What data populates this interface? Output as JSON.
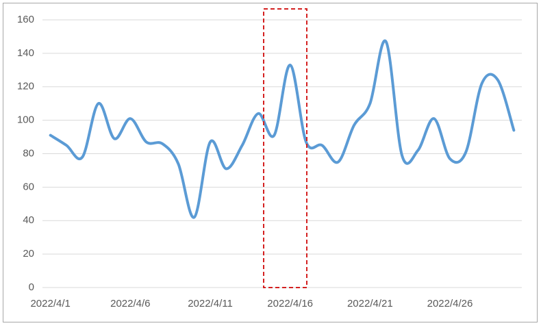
{
  "chart_data": {
    "type": "line",
    "categories": [
      "2022/4/1",
      null,
      null,
      null,
      null,
      "2022/4/6",
      null,
      null,
      null,
      null,
      "2022/4/11",
      null,
      null,
      null,
      null,
      "2022/4/16",
      null,
      null,
      null,
      null,
      "2022/4/21",
      null,
      null,
      null,
      null,
      "2022/4/26",
      null,
      null,
      null,
      null
    ],
    "values": [
      91,
      85,
      78,
      110,
      89,
      101,
      87,
      86,
      74,
      42,
      87,
      71,
      85,
      104,
      91,
      133,
      87,
      85,
      75,
      97,
      110,
      147,
      79,
      82,
      101,
      77,
      81,
      122,
      124,
      94
    ],
    "color": "#5b9bd5",
    "ylim": [
      0,
      160
    ],
    "yticks": [
      0,
      20,
      40,
      60,
      80,
      100,
      120,
      140,
      160
    ],
    "grid": true
  }
}
